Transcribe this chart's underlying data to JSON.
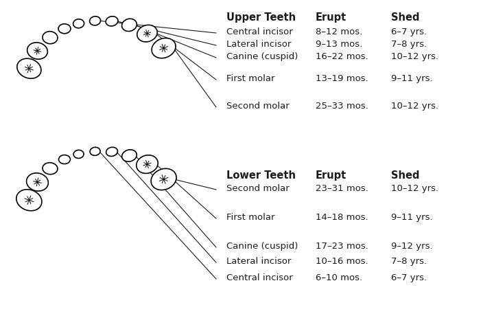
{
  "upper_teeth": {
    "header": [
      "Upper Teeth",
      "Erupt",
      "Shed"
    ],
    "rows": [
      [
        "Central incisor",
        "8–12 mos.",
        "6–7 yrs."
      ],
      [
        "Lateral incisor",
        "9–13 mos.",
        "7–8 yrs."
      ],
      [
        "Canine (cuspid)",
        "16–22 mos.",
        "10–12 yrs."
      ],
      [
        "First molar",
        "13–19 mos.",
        "9–11 yrs."
      ],
      [
        "Second molar",
        "25–33 mos.",
        "10–12 yrs."
      ]
    ]
  },
  "lower_teeth": {
    "header": [
      "Lower Teeth",
      "Erupt",
      "Shed"
    ],
    "rows": [
      [
        "Second molar",
        "23–31 mos.",
        "10–12 yrs."
      ],
      [
        "First molar",
        "14–18 mos.",
        "9–11 yrs."
      ],
      [
        "Canine (cuspid)",
        "17–23 mos.",
        "9–12 yrs."
      ],
      [
        "Lateral incisor",
        "10–16 mos.",
        "7–8 yrs."
      ],
      [
        "Central incisor",
        "6–10 mos.",
        "6–7 yrs."
      ]
    ]
  },
  "bg_color": "#ffffff",
  "text_color": "#1a1a1a",
  "line_color": "#1a1a1a"
}
